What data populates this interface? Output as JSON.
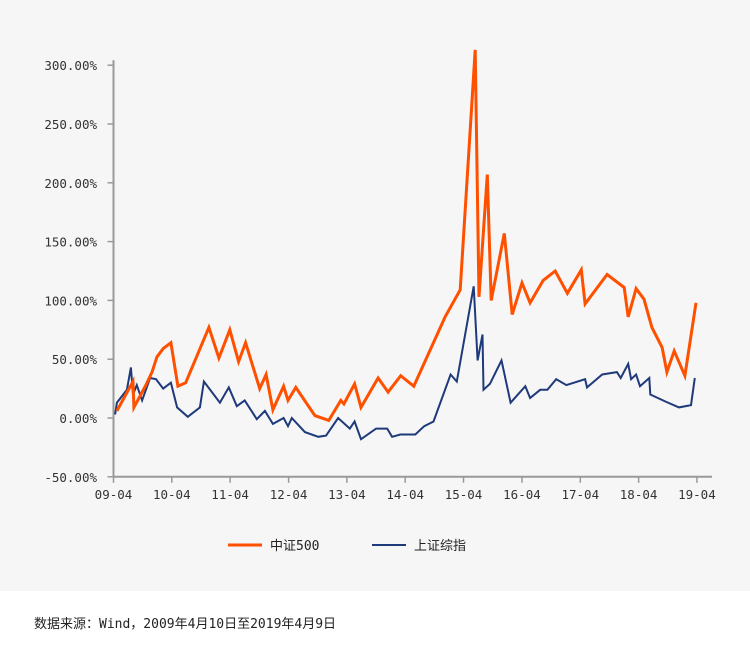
{
  "chart_data": {
    "type": "line",
    "xlabel": "",
    "ylabel": "",
    "ylim": [
      -50,
      300
    ],
    "y_ticks": [
      "300.00%",
      "250.00%",
      "200.00%",
      "150.00%",
      "100.00%",
      "50.00%",
      "0.00%",
      "-50.00%"
    ],
    "y_tick_values": [
      300,
      250,
      200,
      150,
      100,
      50,
      0,
      -50
    ],
    "x_ticks": [
      "09-04",
      "10-04",
      "11-04",
      "12-04",
      "13-04",
      "14-04",
      "15-04",
      "16-04",
      "17-04",
      "18-04",
      "19-04"
    ],
    "x_tick_dates": [
      "2009-04-10",
      "2010-04-10",
      "2011-04-10",
      "2012-04-10",
      "2013-04-10",
      "2014-04-10",
      "2015-04-10",
      "2016-04-10",
      "2017-04-10",
      "2018-04-10",
      "2019-04-10"
    ],
    "grid": false,
    "legend_position": "bottom",
    "series": [
      {
        "name": "中证500",
        "color": "#ff5000",
        "points": [
          [
            "2009-05-01",
            6
          ],
          [
            "2009-08-10",
            31
          ],
          [
            "2009-08-16",
            9
          ],
          [
            "2009-10-30",
            28
          ],
          [
            "2009-12-07",
            39
          ],
          [
            "2010-01-07",
            52
          ],
          [
            "2010-02-15",
            59
          ],
          [
            "2010-04-04",
            64
          ],
          [
            "2010-05-18",
            27
          ],
          [
            "2010-07-06",
            30
          ],
          [
            "2010-11-28",
            77
          ],
          [
            "2011-01-30",
            51
          ],
          [
            "2011-04-08",
            75
          ],
          [
            "2011-06-02",
            48
          ],
          [
            "2011-07-16",
            64
          ],
          [
            "2011-10-12",
            25
          ],
          [
            "2011-11-21",
            37
          ],
          [
            "2012-01-03",
            7
          ],
          [
            "2012-03-10",
            27
          ],
          [
            "2012-04-06",
            15
          ],
          [
            "2012-05-25",
            26
          ],
          [
            "2012-09-22",
            2
          ],
          [
            "2012-12-18",
            -2
          ],
          [
            "2013-03-03",
            15
          ],
          [
            "2013-03-22",
            12
          ],
          [
            "2013-05-28",
            29
          ],
          [
            "2013-07-07",
            9
          ],
          [
            "2013-10-22",
            34
          ],
          [
            "2013-12-24",
            22
          ],
          [
            "2014-03-13",
            36
          ],
          [
            "2014-06-03",
            27
          ],
          [
            "2014-12-16",
            86
          ],
          [
            "2015-03-20",
            109
          ],
          [
            "2015-06-22",
            313
          ],
          [
            "2015-07-16",
            103
          ],
          [
            "2015-09-06",
            207
          ],
          [
            "2015-09-30",
            100
          ],
          [
            "2015-12-21",
            157
          ],
          [
            "2016-02-09",
            88
          ],
          [
            "2016-04-10",
            115
          ],
          [
            "2016-05-31",
            98
          ],
          [
            "2016-08-21",
            117
          ],
          [
            "2016-11-04",
            125
          ],
          [
            "2017-01-19",
            106
          ],
          [
            "2017-04-16",
            126
          ],
          [
            "2017-05-10",
            97
          ],
          [
            "2017-09-25",
            122
          ],
          [
            "2018-01-10",
            111
          ],
          [
            "2018-02-04",
            86
          ],
          [
            "2018-03-25",
            110
          ],
          [
            "2018-05-14",
            101
          ],
          [
            "2018-07-02",
            77
          ],
          [
            "2018-09-04",
            60
          ],
          [
            "2018-10-04",
            39
          ],
          [
            "2018-11-19",
            57
          ],
          [
            "2019-01-25",
            36
          ],
          [
            "2019-04-04",
            98
          ]
        ]
      },
      {
        "name": "上证综指",
        "color": "#1f3a7a",
        "points": [
          [
            "2009-04-20",
            3
          ],
          [
            "2009-05-01",
            13
          ],
          [
            "2009-07-03",
            24
          ],
          [
            "2009-07-28",
            43
          ],
          [
            "2009-08-10",
            20
          ],
          [
            "2009-09-03",
            28
          ],
          [
            "2009-10-06",
            15
          ],
          [
            "2009-11-25",
            34
          ],
          [
            "2010-01-01",
            33
          ],
          [
            "2010-02-15",
            25
          ],
          [
            "2010-04-04",
            30
          ],
          [
            "2010-05-13",
            9
          ],
          [
            "2010-07-19",
            1
          ],
          [
            "2010-10-03",
            9
          ],
          [
            "2010-10-28",
            31
          ],
          [
            "2011-02-05",
            13
          ],
          [
            "2011-04-02",
            26
          ],
          [
            "2011-05-22",
            10
          ],
          [
            "2011-07-10",
            15
          ],
          [
            "2011-09-24",
            -1
          ],
          [
            "2011-11-14",
            6
          ],
          [
            "2012-01-03",
            -5
          ],
          [
            "2012-03-10",
            0
          ],
          [
            "2012-04-06",
            -7
          ],
          [
            "2012-04-30",
            0
          ],
          [
            "2012-07-21",
            -12
          ],
          [
            "2012-10-13",
            -16
          ],
          [
            "2012-12-01",
            -15
          ],
          [
            "2013-02-14",
            0
          ],
          [
            "2013-04-28",
            -9
          ],
          [
            "2013-05-28",
            -3
          ],
          [
            "2013-07-07",
            -18
          ],
          [
            "2013-10-10",
            -9
          ],
          [
            "2013-12-18",
            -9
          ],
          [
            "2014-01-18",
            -16
          ],
          [
            "2014-03-10",
            -14
          ],
          [
            "2014-06-12",
            -14
          ],
          [
            "2014-08-07",
            -7
          ],
          [
            "2014-10-04",
            -3
          ],
          [
            "2015-01-19",
            37
          ],
          [
            "2015-02-27",
            31
          ],
          [
            "2015-06-13",
            112
          ],
          [
            "2015-07-07",
            49
          ],
          [
            "2015-08-07",
            71
          ],
          [
            "2015-08-13",
            24
          ],
          [
            "2015-09-22",
            29
          ],
          [
            "2015-12-04",
            49
          ],
          [
            "2016-01-30",
            13
          ],
          [
            "2016-05-01",
            27
          ],
          [
            "2016-05-31",
            17
          ],
          [
            "2016-08-02",
            24
          ],
          [
            "2016-09-16",
            24
          ],
          [
            "2016-11-10",
            33
          ],
          [
            "2017-01-13",
            28
          ],
          [
            "2017-05-10",
            33
          ],
          [
            "2017-05-22",
            26
          ],
          [
            "2017-08-25",
            37
          ],
          [
            "2017-11-25",
            39
          ],
          [
            "2017-12-19",
            34
          ],
          [
            "2018-02-04",
            46
          ],
          [
            "2018-02-22",
            33
          ],
          [
            "2018-03-25",
            37
          ],
          [
            "2018-04-19",
            27
          ],
          [
            "2018-06-16",
            34
          ],
          [
            "2018-06-22",
            20
          ],
          [
            "2018-09-25",
            14
          ],
          [
            "2018-12-19",
            9
          ],
          [
            "2019-03-04",
            11
          ],
          [
            "2019-03-28",
            34
          ]
        ]
      }
    ]
  },
  "source_note": "数据来源：Wind，2009年4月10日至2019年4月9日"
}
